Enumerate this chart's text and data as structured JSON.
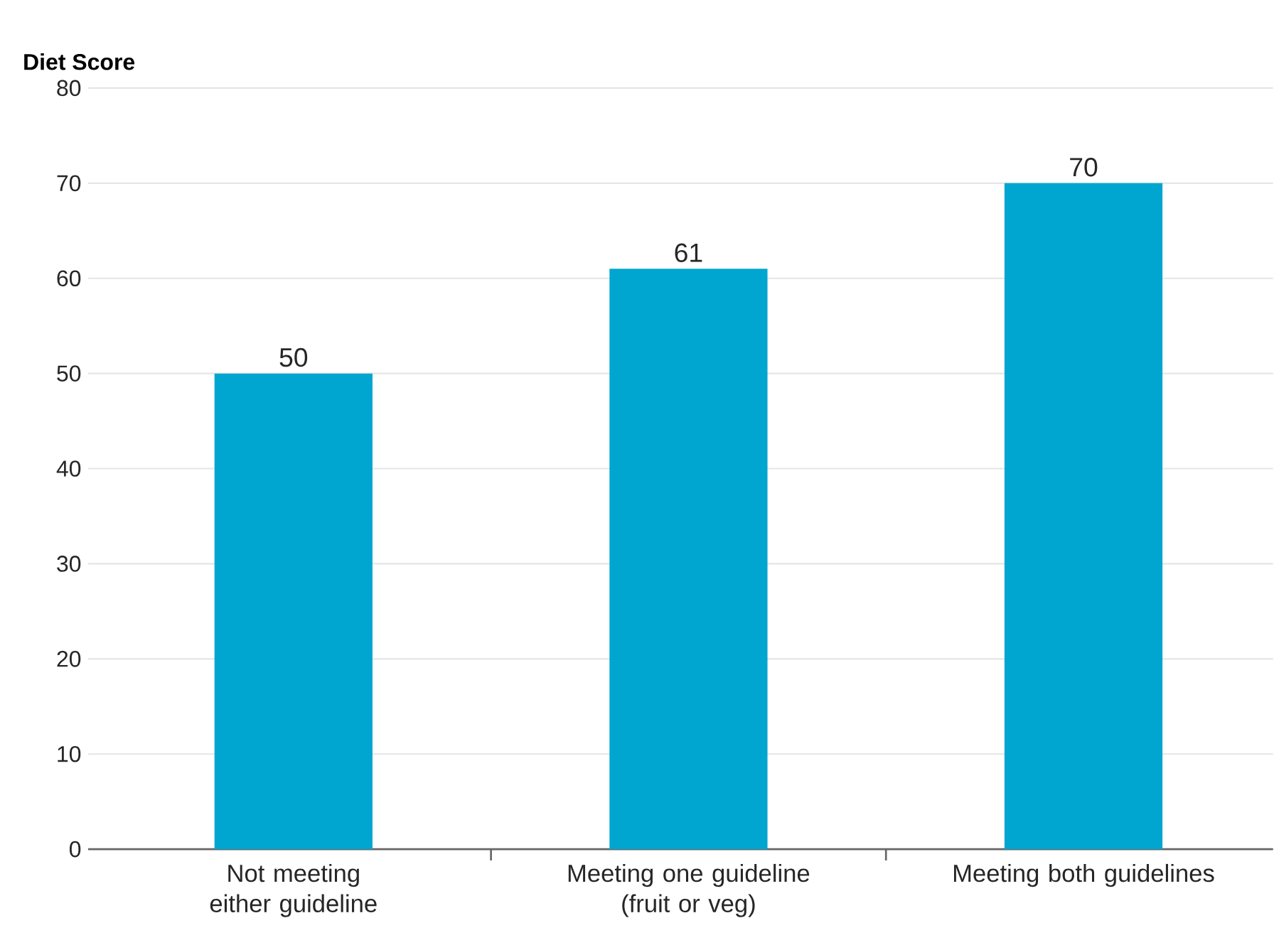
{
  "chart_data": {
    "type": "bar",
    "ylabel": "Diet Score",
    "categories": [
      "Not meeting either guideline",
      "Meeting one guideline (fruit or veg)",
      "Meeting both guidelines"
    ],
    "values": [
      50,
      61,
      70
    ],
    "color": "#00a6cf",
    "ylim": [
      0,
      80
    ],
    "yticks": [
      0,
      10,
      20,
      30,
      40,
      50,
      60,
      70,
      80
    ],
    "grid": "y",
    "data_labels": true
  }
}
